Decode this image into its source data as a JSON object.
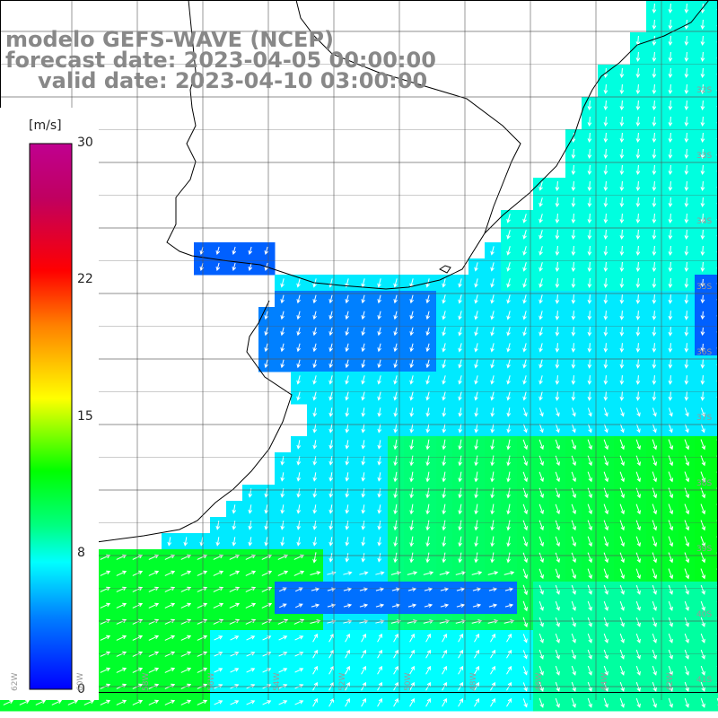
{
  "header": {
    "line1": "modelo GEFS-WAVE (NCEP)",
    "line2": "forecast date: 2023-04-05 00:00:00",
    "line3": "valid date: 2023-04-10 03:00:00"
  },
  "colorbar": {
    "unit": "[m/s]",
    "ticks": [
      {
        "label": "30",
        "value": 30
      },
      {
        "label": "22",
        "value": 22
      },
      {
        "label": "15",
        "value": 15
      },
      {
        "label": "8",
        "value": 8
      },
      {
        "label": "0",
        "value": 0
      }
    ],
    "stops": [
      "#0000ff",
      "#0080ff",
      "#00ffff",
      "#00ff80",
      "#00ff00",
      "#80ff00",
      "#ffff00",
      "#ff8000",
      "#ff0000",
      "#c00060",
      "#c00090"
    ]
  },
  "axes": {
    "lon_labels": [
      "62W",
      "60W",
      "58W",
      "56W",
      "54W",
      "52W",
      "50W",
      "48W",
      "46W",
      "44W",
      "42W"
    ],
    "lat_labels": [
      "32S",
      "33S",
      "34S",
      "35S",
      "36S",
      "37S",
      "38S",
      "39S",
      "40S",
      "41S"
    ]
  },
  "colors": {
    "land": "#ffffff",
    "coast": "#000000",
    "grid": "#555555",
    "arrow": "#ffffff"
  }
}
